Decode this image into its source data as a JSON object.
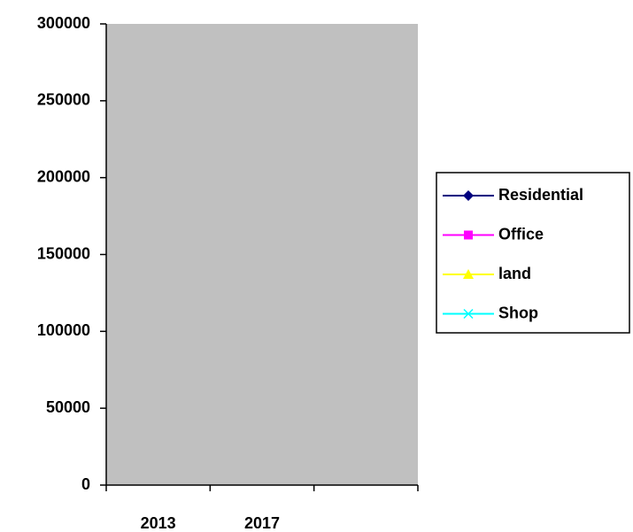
{
  "chart_data": {
    "type": "line",
    "categories": [
      "2013",
      "2017",
      null
    ],
    "series": [
      {
        "name": "Residential",
        "color": "#000080",
        "marker": "diamond",
        "values": [
          null,
          null,
          null
        ]
      },
      {
        "name": "Office",
        "color": "#ff00ff",
        "marker": "square",
        "values": [
          null,
          null,
          null
        ]
      },
      {
        "name": "land",
        "color": "#ffff00",
        "marker": "triangle",
        "values": [
          null,
          null,
          null
        ]
      },
      {
        "name": "Shop",
        "color": "#00ffff",
        "marker": "x",
        "values": [
          null,
          null,
          null
        ]
      }
    ],
    "ylim": [
      0,
      300000
    ],
    "yticks": [
      0,
      50000,
      100000,
      150000,
      200000,
      250000,
      300000
    ],
    "plot_background": "#c0c0c0",
    "legend": "right"
  }
}
